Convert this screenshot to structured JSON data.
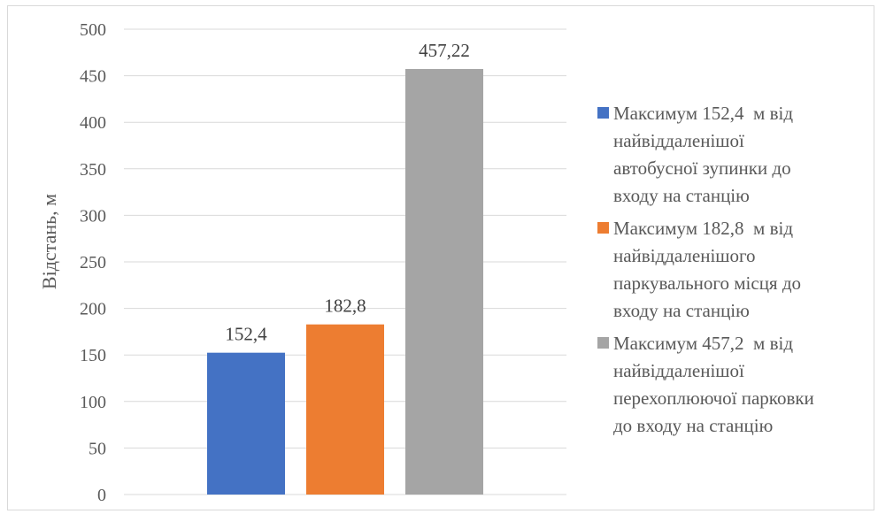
{
  "chart_data": {
    "type": "bar",
    "ylabel": "Відстань, м",
    "ylim": [
      0,
      500
    ],
    "yticks": [
      0,
      50,
      100,
      150,
      200,
      250,
      300,
      350,
      400,
      450,
      500
    ],
    "grid": true,
    "legend_position": "right",
    "series": [
      {
        "name": "Максимум 152,4  м від найвіддаленішої автобусної зупинки до входу на станцію",
        "value": 152.4,
        "label": "152,4",
        "color": "#4472C4"
      },
      {
        "name": "Максимум 182,8  м від найвіддаленішого паркувального місця до входу на станцію",
        "value": 182.8,
        "label": "182,8",
        "color": "#ED7D31"
      },
      {
        "name": "Максимум 457,2  м від найвіддаленішої перехоплюючої парковки до входу на станцію",
        "value": 457.22,
        "label": "457,22",
        "color": "#A5A5A5"
      }
    ]
  },
  "legend": {
    "items": [
      {
        "lines": [
          "Максимум 152,4  м від",
          "найвіддаленішої",
          "автобусної зупинки до",
          "входу на станцію"
        ]
      },
      {
        "lines": [
          "Максимум 182,8  м від",
          "найвіддаленішого",
          "паркувального місця до",
          "входу на станцію"
        ]
      },
      {
        "lines": [
          "Максимум 457,2  м від",
          "найвіддаленішої",
          "перехоплюючої парковки",
          "до входу на станцію"
        ]
      }
    ]
  }
}
